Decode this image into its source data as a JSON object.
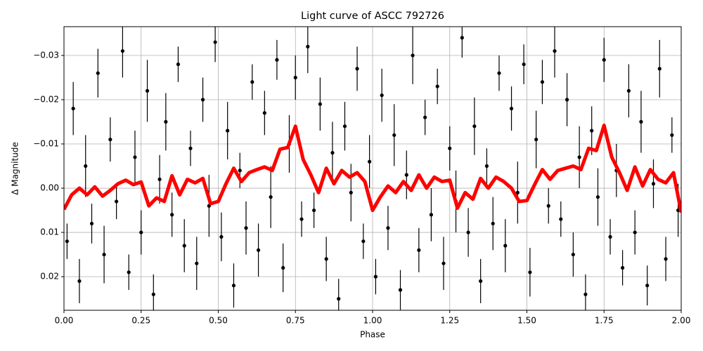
{
  "chart_data": {
    "type": "scatter",
    "title": "Light curve of ASCC 792726",
    "x_label": "Phase",
    "y_label": "Δ Magnitude",
    "xlim": [
      0,
      2
    ],
    "ylim": [
      -0.0365,
      0.0276
    ],
    "invert_y": true,
    "grid": true,
    "xticks": [
      {
        "value": 0,
        "label": "0.00"
      },
      0.25,
      {
        "value": 0.5,
        "label": "0.50"
      },
      0.75,
      {
        "value": 1,
        "label": "1.00"
      },
      1.25,
      {
        "value": 1.5,
        "label": "1.50"
      },
      1.75,
      {
        "value": 2,
        "label": "2.00"
      }
    ],
    "yticks": [
      {
        "value": -0.03,
        "label": "−0.03"
      },
      {
        "value": -0.02,
        "label": "−0.02"
      },
      {
        "value": -0.01,
        "label": "−0.01"
      },
      {
        "value": 0,
        "label": "0.00"
      },
      0.01,
      0.02
    ],
    "points": {
      "color": "#000000",
      "x": [
        0.01,
        0.03,
        0.05,
        0.07,
        0.09,
        0.11,
        0.13,
        0.15,
        0.17,
        0.19,
        0.21,
        0.23,
        0.25,
        0.27,
        0.29,
        0.31,
        0.33,
        0.35,
        0.37,
        0.39,
        0.41,
        0.43,
        0.45,
        0.47,
        0.49,
        0.51,
        0.53,
        0.55,
        0.57,
        0.59,
        0.61,
        0.63,
        0.65,
        0.67,
        0.69,
        0.71,
        0.73,
        0.75,
        0.77,
        0.79,
        0.81,
        0.83,
        0.85,
        0.87,
        0.89,
        0.91,
        0.93,
        0.95,
        0.97,
        0.99,
        1.01,
        1.03,
        1.05,
        1.07,
        1.09,
        1.11,
        1.13,
        1.15,
        1.17,
        1.19,
        1.21,
        1.23,
        1.25,
        1.27,
        1.29,
        1.31,
        1.33,
        1.35,
        1.37,
        1.39,
        1.41,
        1.43,
        1.45,
        1.47,
        1.49,
        1.51,
        1.53,
        1.55,
        1.57,
        1.59,
        1.61,
        1.63,
        1.65,
        1.67,
        1.69,
        1.71,
        1.73,
        1.75,
        1.77,
        1.79,
        1.81,
        1.83,
        1.85,
        1.87,
        1.89,
        1.91,
        1.93,
        1.95,
        1.97,
        1.99
      ],
      "y": [
        0.012,
        -0.018,
        0.021,
        -0.005,
        0.008,
        -0.026,
        0.015,
        -0.011,
        0.003,
        -0.031,
        0.019,
        -0.007,
        0.01,
        -0.022,
        0.024,
        -0.002,
        -0.015,
        0.006,
        -0.028,
        0.013,
        -0.009,
        0.017,
        -0.02,
        0.004,
        -0.033,
        0.011,
        -0.013,
        0.022,
        -0.004,
        0.009,
        -0.024,
        0.014,
        -0.017,
        0.002,
        -0.029,
        0.018,
        -0.01,
        -0.025,
        0.007,
        -0.032,
        0.005,
        -0.019,
        0.016,
        -0.008,
        0.025,
        -0.014,
        0.001,
        -0.027,
        0.012,
        -0.006,
        0.02,
        -0.021,
        0.009,
        -0.012,
        0.023,
        -0.003,
        -0.03,
        0.014,
        -0.016,
        0.006,
        -0.023,
        0.017,
        -0.009,
        0.003,
        -0.034,
        0.01,
        -0.014,
        0.021,
        -0.005,
        0.008,
        -0.026,
        0.013,
        -0.018,
        0.001,
        -0.028,
        0.019,
        -0.011,
        -0.024,
        0.004,
        -0.031,
        0.007,
        -0.02,
        0.015,
        -0.007,
        0.024,
        -0.013,
        0.002,
        -0.029,
        0.011,
        -0.004,
        0.018,
        -0.022,
        0.01,
        -0.015,
        0.022,
        -0.001,
        -0.027,
        0.016,
        -0.012,
        0.005
      ],
      "yerr": [
        0.004,
        0.006,
        0.005,
        0.007,
        0.0045,
        0.0055,
        0.0065,
        0.005,
        0.004,
        0.006,
        0.004,
        0.006,
        0.005,
        0.007,
        0.0045,
        0.0055,
        0.0065,
        0.005,
        0.004,
        0.006,
        0.004,
        0.006,
        0.005,
        0.007,
        0.0045,
        0.0055,
        0.0065,
        0.005,
        0.004,
        0.006,
        0.004,
        0.006,
        0.005,
        0.007,
        0.0045,
        0.0055,
        0.0065,
        0.005,
        0.004,
        0.006,
        0.004,
        0.006,
        0.005,
        0.007,
        0.0045,
        0.0055,
        0.0065,
        0.005,
        0.004,
        0.006,
        0.004,
        0.006,
        0.005,
        0.007,
        0.0045,
        0.0055,
        0.0065,
        0.005,
        0.004,
        0.006,
        0.004,
        0.006,
        0.005,
        0.007,
        0.0045,
        0.0055,
        0.0065,
        0.005,
        0.004,
        0.006,
        0.004,
        0.006,
        0.005,
        0.007,
        0.0045,
        0.0055,
        0.0065,
        0.005,
        0.004,
        0.006,
        0.004,
        0.006,
        0.005,
        0.007,
        0.0045,
        0.0055,
        0.0065,
        0.005,
        0.004,
        0.006,
        0.004,
        0.006,
        0.005,
        0.007,
        0.0045,
        0.0055,
        0.0065,
        0.005,
        0.004,
        0.006
      ]
    },
    "line": {
      "color": "#ff0000",
      "x": [
        0,
        0.025,
        0.05,
        0.075,
        0.1,
        0.125,
        0.15,
        0.175,
        0.2,
        0.225,
        0.25,
        0.275,
        0.3,
        0.325,
        0.35,
        0.375,
        0.4,
        0.425,
        0.45,
        0.475,
        0.5,
        0.525,
        0.55,
        0.575,
        0.6,
        0.625,
        0.65,
        0.675,
        0.7,
        0.725,
        0.75,
        0.775,
        0.8,
        0.825,
        0.85,
        0.875,
        0.9,
        0.925,
        0.95,
        0.975,
        1,
        1.025,
        1.05,
        1.075,
        1.1,
        1.125,
        1.15,
        1.175,
        1.2,
        1.225,
        1.25,
        1.275,
        1.3,
        1.325,
        1.35,
        1.375,
        1.4,
        1.425,
        1.45,
        1.475,
        1.5,
        1.525,
        1.55,
        1.575,
        1.6,
        1.625,
        1.65,
        1.675,
        1.7,
        1.725,
        1.75,
        1.775,
        1.8,
        1.825,
        1.85,
        1.875,
        1.9,
        1.925,
        1.95,
        1.975,
        2
      ],
      "y": [
        0.0048,
        0.0015,
        0,
        0.0015,
        -0.0003,
        0.0018,
        0.0005,
        -0.001,
        -0.0018,
        -0.0008,
        -0.0014,
        0.004,
        0.0022,
        0.003,
        -0.0028,
        0.0015,
        -0.002,
        -0.0012,
        -0.0022,
        0.0035,
        0.003,
        -0.001,
        -0.0045,
        -0.0015,
        -0.0035,
        -0.0042,
        -0.0048,
        -0.004,
        -0.0088,
        -0.0092,
        -0.014,
        -0.0065,
        -0.003,
        0.001,
        -0.0045,
        -0.001,
        -0.004,
        -0.0025,
        -0.0035,
        -0.0015,
        0.005,
        0.002,
        -0.0005,
        0.001,
        -0.0015,
        0.0005,
        -0.003,
        0,
        -0.0025,
        -0.0015,
        -0.0018,
        0.0045,
        0.001,
        0.0025,
        -0.0022,
        0,
        -0.0025,
        -0.0015,
        0,
        0.003,
        0.0028,
        -0.0008,
        -0.0042,
        -0.002,
        -0.004,
        -0.0045,
        -0.005,
        -0.0042,
        -0.009,
        -0.0085,
        -0.0142,
        -0.007,
        -0.0035,
        0.0005,
        -0.0048,
        -0.0005,
        -0.0042,
        -0.002,
        -0.0012,
        -0.0035,
        0.0055
      ]
    }
  }
}
